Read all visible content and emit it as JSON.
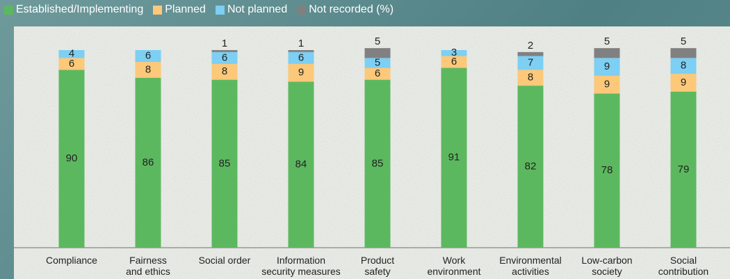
{
  "chart_data": {
    "type": "stacked_bar",
    "categories": [
      "Compliance",
      "Fairness\nand ethics",
      "Social order",
      "Information\nsecurity measures",
      "Product\nsafety",
      "Work\nenvironment",
      "Environmental\nactivities",
      "Low-carbon\nsociety",
      "Social\ncontribution"
    ],
    "series": [
      {
        "name": "Established/Implementing",
        "color": "#5cb85f",
        "values": [
          90,
          86,
          85,
          84,
          85,
          91,
          82,
          78,
          79
        ]
      },
      {
        "name": "Planned",
        "color": "#fcc879",
        "values": [
          6,
          8,
          8,
          9,
          6,
          6,
          8,
          9,
          9
        ]
      },
      {
        "name": "Not planned",
        "color": "#7dcff3",
        "values": [
          4,
          6,
          6,
          6,
          5,
          3,
          7,
          9,
          8
        ]
      },
      {
        "name": "Not recorded (%)",
        "color": "#808080",
        "values": [
          null,
          null,
          1,
          1,
          5,
          null,
          2,
          5,
          5
        ]
      }
    ],
    "ylim": [
      0,
      100
    ]
  }
}
